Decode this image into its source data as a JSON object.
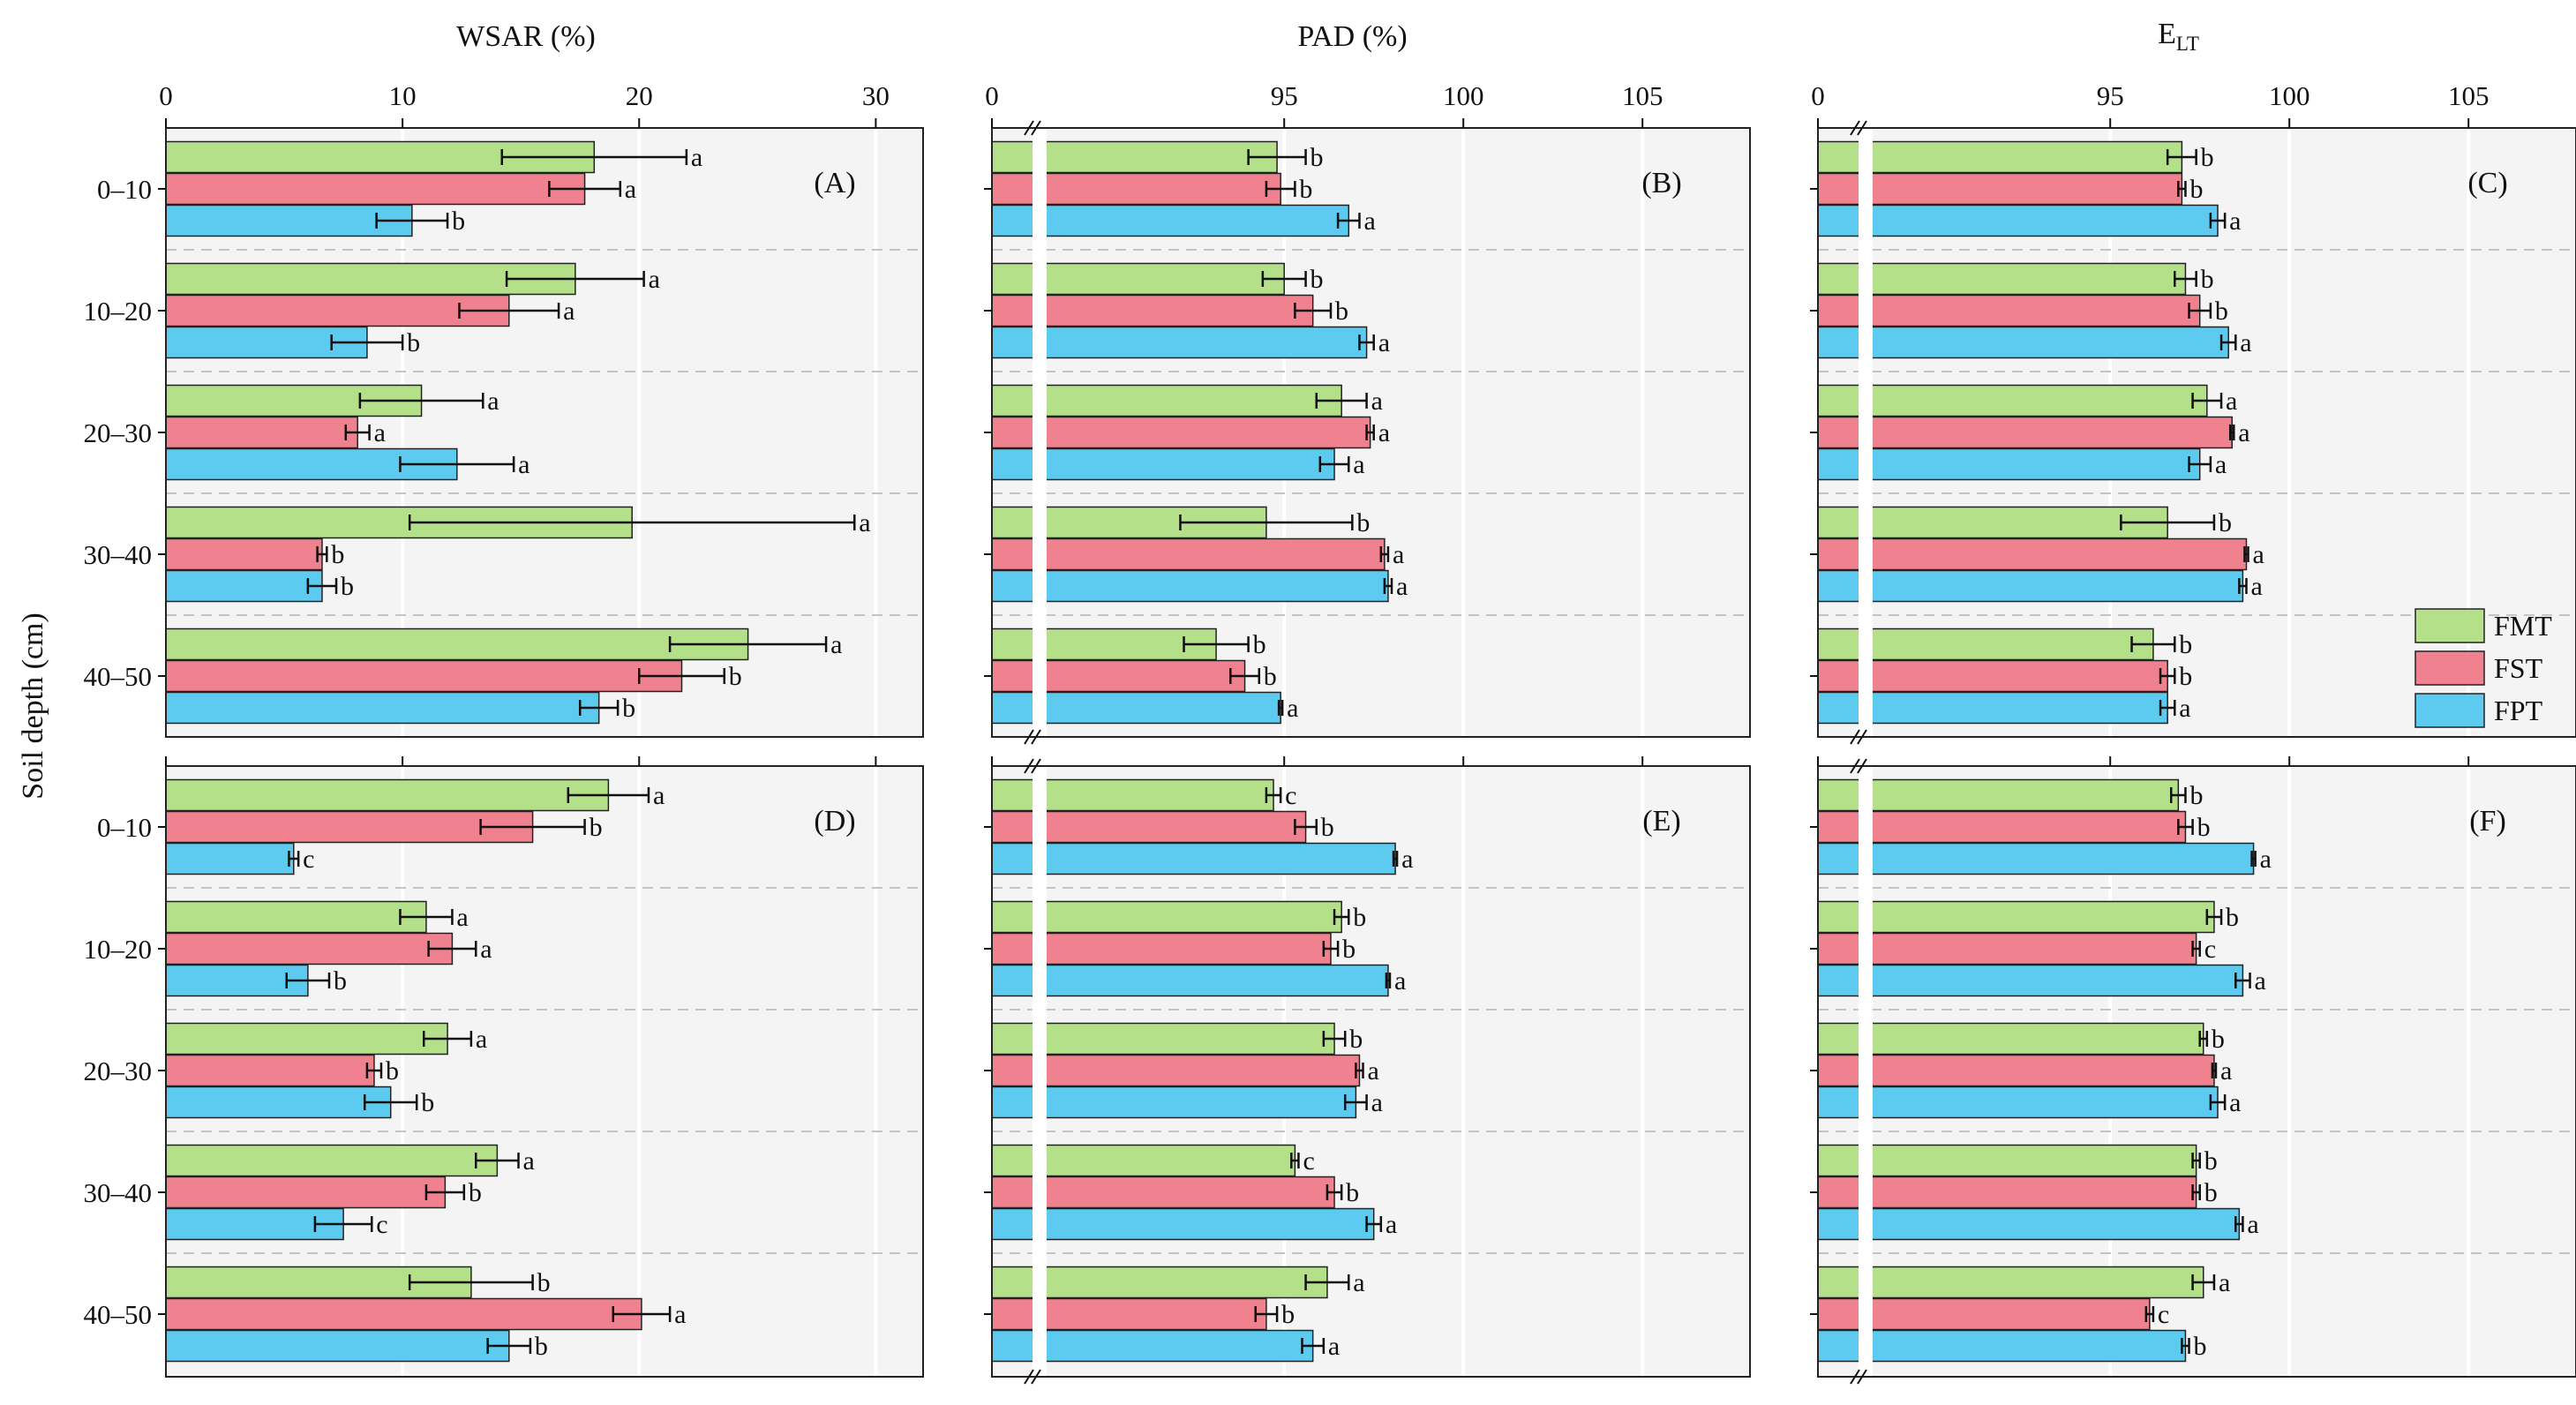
{
  "figure": {
    "y_axis_label": "Soil depth (cm)",
    "depths": [
      "0–10",
      "10–20",
      "20–30",
      "30–40",
      "40–50"
    ],
    "treatments": [
      "FMT",
      "FST",
      "FPT"
    ]
  },
  "legend": {
    "items": [
      {
        "label": "FMT",
        "color": "#b5e08a"
      },
      {
        "label": "FST",
        "color": "#f0828f"
      },
      {
        "label": "FPT",
        "color": "#5dcaf0"
      }
    ]
  },
  "chart_data": [
    {
      "type": "bar",
      "orientation": "horizontal",
      "panel": "(A)",
      "title": "WSAR (%)",
      "xlim": [
        0,
        32
      ],
      "xticks": [
        0,
        10,
        20,
        30
      ],
      "axis_break": false,
      "categories": [
        "0–10",
        "10–20",
        "20–30",
        "30–40",
        "40–50"
      ],
      "series": [
        {
          "name": "FMT",
          "values": [
            18.1,
            17.3,
            10.8,
            19.7,
            24.6
          ],
          "errors": [
            3.9,
            2.9,
            2.6,
            9.4,
            3.3
          ],
          "letters": [
            "a",
            "a",
            "a",
            "a",
            "a"
          ]
        },
        {
          "name": "FST",
          "values": [
            17.7,
            14.5,
            8.1,
            6.6,
            21.8
          ],
          "errors": [
            1.5,
            2.1,
            0.5,
            0.2,
            1.8
          ],
          "letters": [
            "a",
            "a",
            "a",
            "b",
            "b"
          ]
        },
        {
          "name": "FPT",
          "values": [
            10.4,
            8.5,
            12.3,
            6.6,
            18.3
          ],
          "errors": [
            1.5,
            1.5,
            2.4,
            0.6,
            0.8
          ],
          "letters": [
            "b",
            "b",
            "a",
            "b",
            "b"
          ]
        }
      ]
    },
    {
      "type": "bar",
      "orientation": "horizontal",
      "panel": "(B)",
      "title": "PAD (%)",
      "xlim": [
        88,
        108
      ],
      "xticks": [
        95,
        100,
        105
      ],
      "axis_break": true,
      "axis_start_label": "0",
      "categories": [
        "0–10",
        "10–20",
        "20–30",
        "30–40",
        "40–50"
      ],
      "series": [
        {
          "name": "FMT",
          "values": [
            94.8,
            95.0,
            96.6,
            94.5,
            93.1
          ],
          "errors": [
            0.8,
            0.6,
            0.7,
            2.4,
            0.9
          ],
          "letters": [
            "b",
            "b",
            "a",
            "b",
            "b"
          ]
        },
        {
          "name": "FST",
          "values": [
            94.9,
            95.8,
            97.4,
            97.8,
            93.9
          ],
          "errors": [
            0.4,
            0.5,
            0.1,
            0.1,
            0.4
          ],
          "letters": [
            "b",
            "b",
            "a",
            "a",
            "b"
          ]
        },
        {
          "name": "FPT",
          "values": [
            96.8,
            97.3,
            96.4,
            97.9,
            94.9
          ],
          "errors": [
            0.3,
            0.2,
            0.4,
            0.1,
            0.05
          ],
          "letters": [
            "a",
            "a",
            "a",
            "a",
            "a"
          ]
        }
      ]
    },
    {
      "type": "bar",
      "orientation": "horizontal",
      "panel": "(C)",
      "title": "E_LT",
      "title_main": "E",
      "title_sub": "LT",
      "xlim": [
        88,
        108
      ],
      "xticks": [
        95,
        100,
        105
      ],
      "axis_break": true,
      "axis_start_label": "0",
      "categories": [
        "0–10",
        "10–20",
        "20–30",
        "30–40",
        "40–50"
      ],
      "series": [
        {
          "name": "FMT",
          "values": [
            97.0,
            97.1,
            97.7,
            96.6,
            96.2
          ],
          "errors": [
            0.4,
            0.3,
            0.4,
            1.3,
            0.6
          ],
          "letters": [
            "b",
            "b",
            "a",
            "b",
            "b"
          ]
        },
        {
          "name": "FST",
          "values": [
            97.0,
            97.5,
            98.4,
            98.8,
            96.6
          ],
          "errors": [
            0.1,
            0.3,
            0.05,
            0.05,
            0.2
          ],
          "letters": [
            "b",
            "b",
            "a",
            "a",
            "b"
          ]
        },
        {
          "name": "FPT",
          "values": [
            98.0,
            98.3,
            97.5,
            98.7,
            96.6
          ],
          "errors": [
            0.2,
            0.2,
            0.3,
            0.1,
            0.2
          ],
          "letters": [
            "a",
            "a",
            "a",
            "a",
            "a"
          ]
        }
      ]
    },
    {
      "type": "bar",
      "orientation": "horizontal",
      "panel": "(D)",
      "title": "",
      "xlim": [
        0,
        32
      ],
      "xticks": [
        0,
        10,
        20,
        30
      ],
      "axis_break": false,
      "categories": [
        "0–10",
        "10–20",
        "20–30",
        "30–40",
        "40–50"
      ],
      "series": [
        {
          "name": "FMT",
          "values": [
            18.7,
            11.0,
            11.9,
            14.0,
            12.9
          ],
          "errors": [
            1.7,
            1.1,
            1.0,
            0.9,
            2.6
          ],
          "letters": [
            "a",
            "a",
            "a",
            "a",
            "b"
          ]
        },
        {
          "name": "FST",
          "values": [
            15.5,
            12.1,
            8.8,
            11.8,
            20.1
          ],
          "errors": [
            2.2,
            1.0,
            0.3,
            0.8,
            1.2
          ],
          "letters": [
            "b",
            "a",
            "b",
            "b",
            "a"
          ]
        },
        {
          "name": "FPT",
          "values": [
            5.4,
            6.0,
            9.5,
            7.5,
            14.5
          ],
          "errors": [
            0.2,
            0.9,
            1.1,
            1.2,
            0.9
          ],
          "letters": [
            "c",
            "b",
            "b",
            "c",
            "b"
          ]
        }
      ]
    },
    {
      "type": "bar",
      "orientation": "horizontal",
      "panel": "(E)",
      "title": "",
      "xlim": [
        88,
        108
      ],
      "xticks": [
        95,
        100,
        105
      ],
      "axis_break": true,
      "axis_start_label": "",
      "categories": [
        "0–10",
        "10–20",
        "20–30",
        "30–40",
        "40–50"
      ],
      "series": [
        {
          "name": "FMT",
          "values": [
            94.7,
            96.6,
            96.4,
            95.3,
            96.2
          ],
          "errors": [
            0.2,
            0.2,
            0.3,
            0.1,
            0.6
          ],
          "letters": [
            "c",
            "b",
            "b",
            "c",
            "a"
          ]
        },
        {
          "name": "FST",
          "values": [
            95.6,
            96.3,
            97.1,
            96.4,
            94.5
          ],
          "errors": [
            0.3,
            0.2,
            0.1,
            0.2,
            0.3
          ],
          "letters": [
            "b",
            "b",
            "a",
            "b",
            "b"
          ]
        },
        {
          "name": "FPT",
          "values": [
            98.1,
            97.9,
            97.0,
            97.5,
            95.8
          ],
          "errors": [
            0.05,
            0.05,
            0.3,
            0.2,
            0.3
          ],
          "letters": [
            "a",
            "a",
            "a",
            "a",
            "a"
          ]
        }
      ]
    },
    {
      "type": "bar",
      "orientation": "horizontal",
      "panel": "(F)",
      "title": "",
      "xlim": [
        88,
        108
      ],
      "xticks": [
        95,
        100,
        105
      ],
      "axis_break": true,
      "axis_start_label": "",
      "categories": [
        "0–10",
        "10–20",
        "20–30",
        "30–40",
        "40–50"
      ],
      "series": [
        {
          "name": "FMT",
          "values": [
            96.9,
            97.9,
            97.6,
            97.4,
            97.6
          ],
          "errors": [
            0.2,
            0.2,
            0.1,
            0.1,
            0.3
          ],
          "letters": [
            "b",
            "b",
            "b",
            "b",
            "a"
          ]
        },
        {
          "name": "FST",
          "values": [
            97.1,
            97.4,
            97.9,
            97.4,
            96.1
          ],
          "errors": [
            0.2,
            0.1,
            0.05,
            0.1,
            0.1
          ],
          "letters": [
            "b",
            "c",
            "a",
            "b",
            "c"
          ]
        },
        {
          "name": "FPT",
          "values": [
            99.0,
            98.7,
            98.0,
            98.6,
            97.1
          ],
          "errors": [
            0.05,
            0.2,
            0.2,
            0.1,
            0.1
          ],
          "letters": [
            "a",
            "a",
            "a",
            "a",
            "b"
          ]
        }
      ]
    }
  ]
}
